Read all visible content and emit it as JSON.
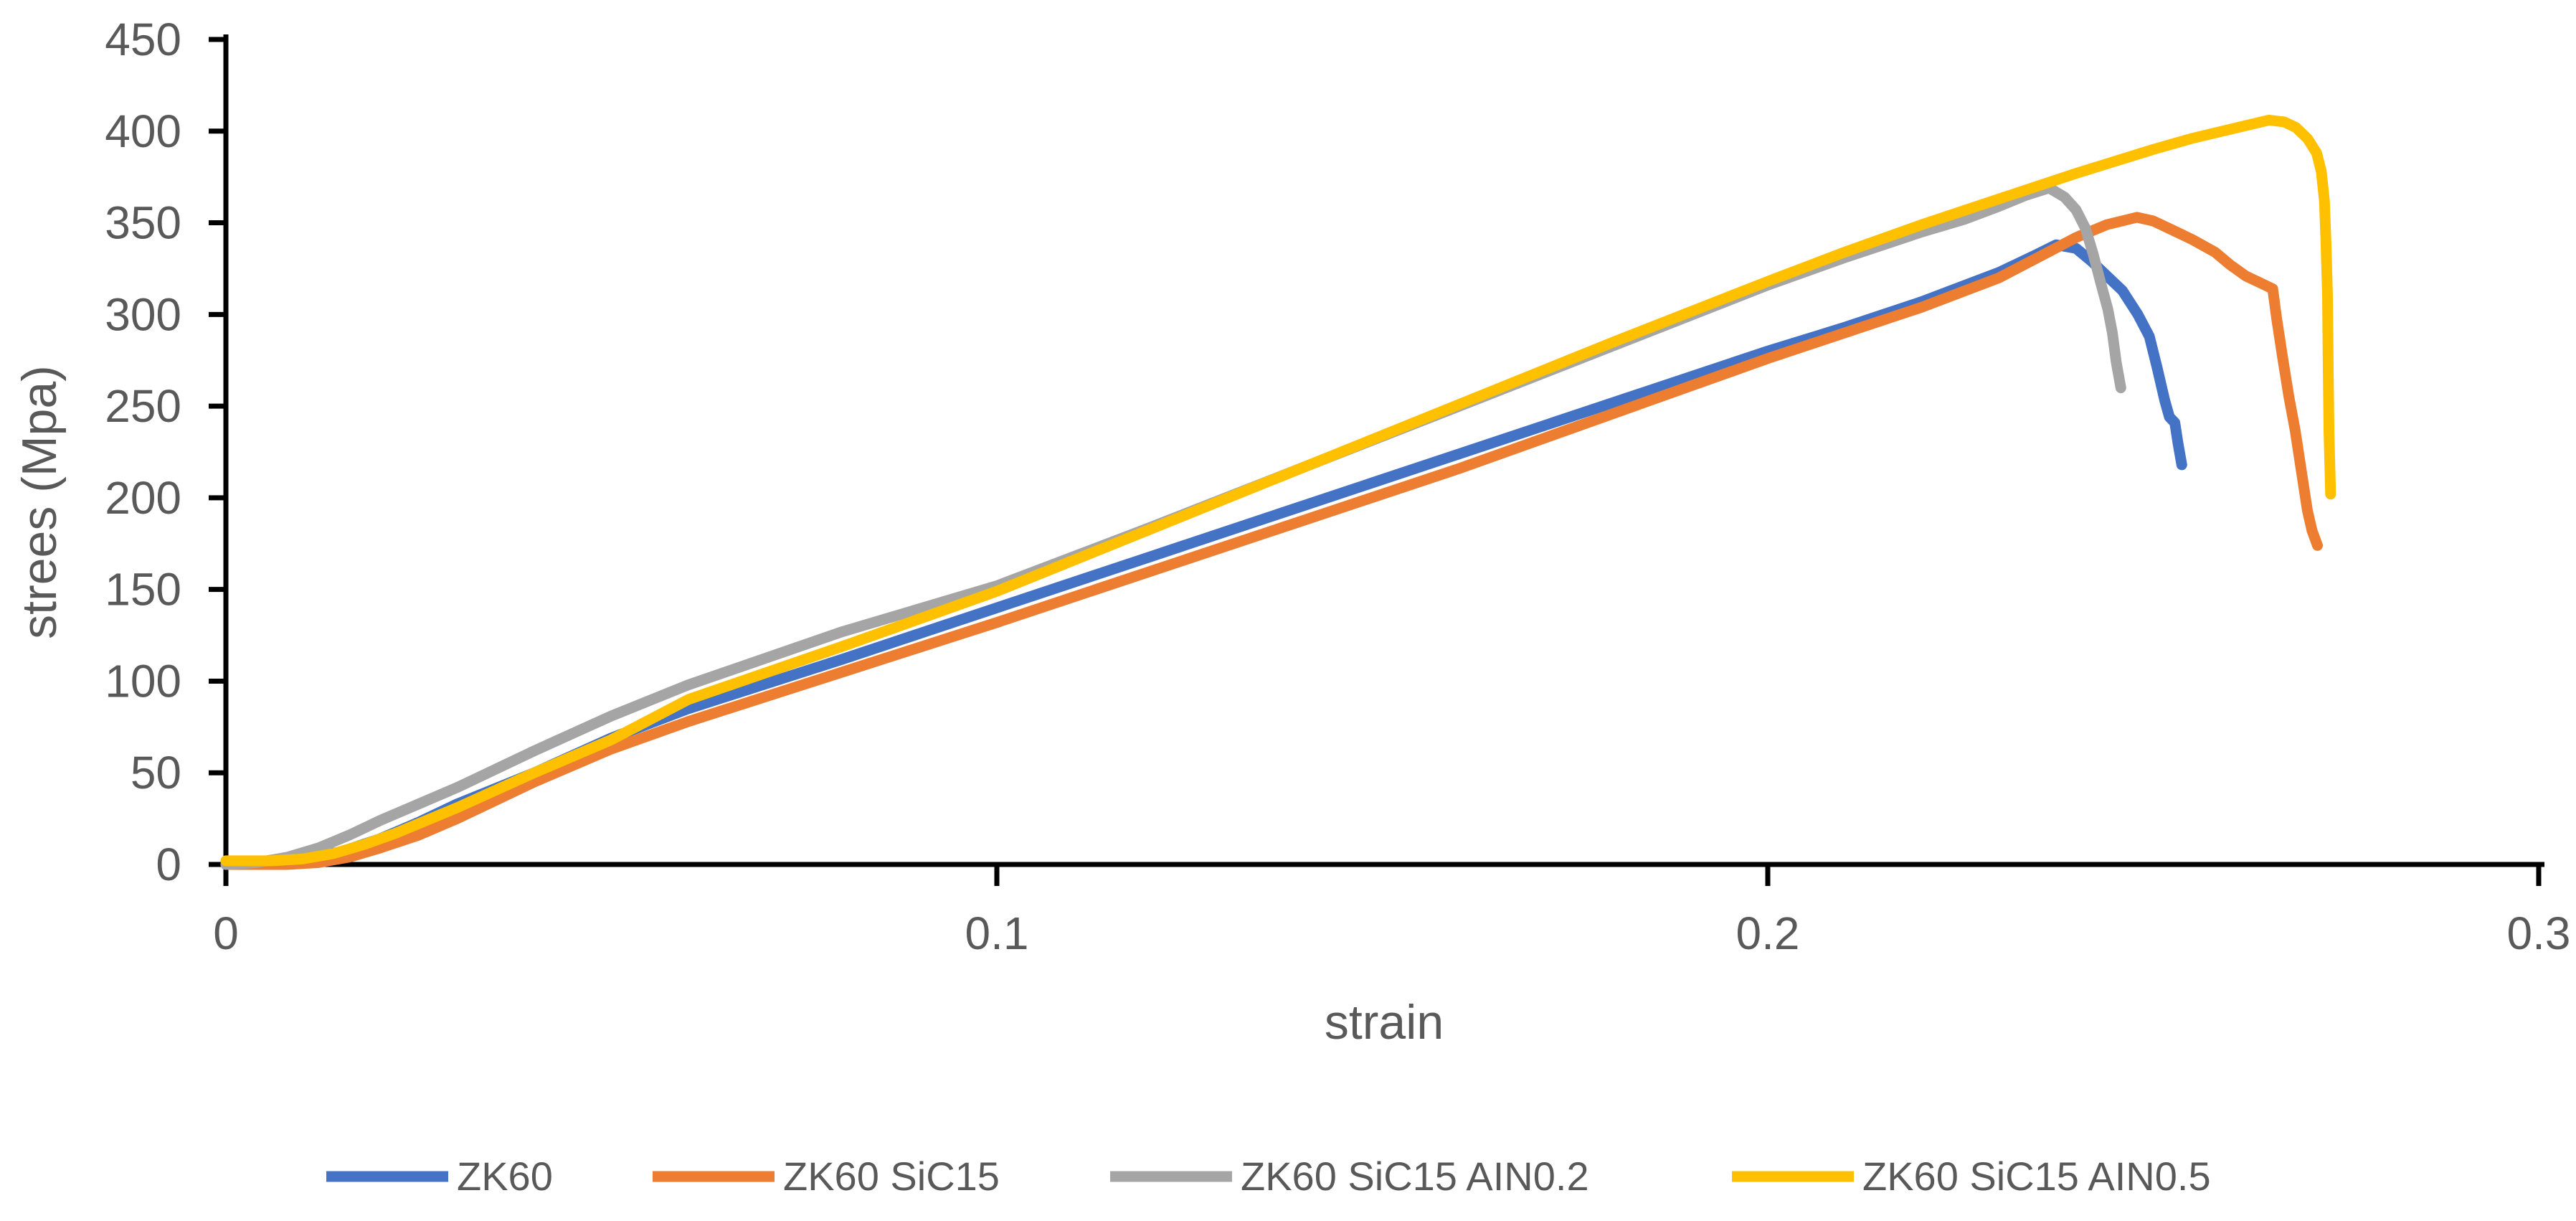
{
  "chart_data": {
    "type": "line",
    "title": "",
    "xlabel": "strain",
    "ylabel": "strees (Mpa)",
    "xlim": [
      0,
      0.3
    ],
    "ylim": [
      0,
      450
    ],
    "x_ticks": [
      0,
      0.1,
      0.2,
      0.3
    ],
    "y_ticks": [
      0,
      50,
      100,
      150,
      200,
      250,
      300,
      350,
      400,
      450
    ],
    "grid": false,
    "legend_position": "bottom",
    "axis_color": "#000000",
    "text_color": "#595959",
    "background_color": "#ffffff",
    "series": [
      {
        "name": "ZK60",
        "color": "#4472C4",
        "points": [
          [
            0,
            0
          ],
          [
            0.005,
            1
          ],
          [
            0.01,
            3
          ],
          [
            0.015,
            7
          ],
          [
            0.02,
            14
          ],
          [
            0.025,
            23
          ],
          [
            0.03,
            33
          ],
          [
            0.04,
            50
          ],
          [
            0.05,
            69
          ],
          [
            0.06,
            85
          ],
          [
            0.08,
            112
          ],
          [
            0.1,
            140
          ],
          [
            0.12,
            168
          ],
          [
            0.14,
            196
          ],
          [
            0.16,
            224
          ],
          [
            0.18,
            252
          ],
          [
            0.2,
            280
          ],
          [
            0.21,
            293
          ],
          [
            0.22,
            307
          ],
          [
            0.23,
            323
          ],
          [
            0.2345,
            332
          ],
          [
            0.2374,
            338
          ],
          [
            0.24,
            336
          ],
          [
            0.242,
            329
          ],
          [
            0.244,
            321
          ],
          [
            0.246,
            313
          ],
          [
            0.248,
            300
          ],
          [
            0.2495,
            288
          ],
          [
            0.2505,
            271
          ],
          [
            0.2515,
            253
          ],
          [
            0.2521,
            244
          ],
          [
            0.2528,
            241
          ],
          [
            0.2532,
            230
          ],
          [
            0.2537,
            218
          ]
        ]
      },
      {
        "name": "ZK60 SiC15",
        "color": "#ED7D31",
        "points": [
          [
            0,
            0
          ],
          [
            0.008,
            0
          ],
          [
            0.012,
            1
          ],
          [
            0.016,
            4
          ],
          [
            0.02,
            9
          ],
          [
            0.025,
            16
          ],
          [
            0.03,
            25
          ],
          [
            0.04,
            45
          ],
          [
            0.05,
            63
          ],
          [
            0.06,
            78
          ],
          [
            0.08,
            105
          ],
          [
            0.1,
            132
          ],
          [
            0.12,
            160
          ],
          [
            0.14,
            188
          ],
          [
            0.16,
            216
          ],
          [
            0.18,
            246
          ],
          [
            0.2,
            276
          ],
          [
            0.21,
            290
          ],
          [
            0.22,
            304
          ],
          [
            0.23,
            320
          ],
          [
            0.235,
            331
          ],
          [
            0.24,
            342
          ],
          [
            0.244,
            349
          ],
          [
            0.2479,
            353
          ],
          [
            0.25,
            351
          ],
          [
            0.252,
            347
          ],
          [
            0.255,
            341
          ],
          [
            0.258,
            334
          ],
          [
            0.26,
            327
          ],
          [
            0.262,
            321
          ],
          [
            0.264,
            317
          ],
          [
            0.2655,
            314
          ],
          [
            0.266,
            298
          ],
          [
            0.2668,
            276
          ],
          [
            0.2676,
            255
          ],
          [
            0.2684,
            237
          ],
          [
            0.2692,
            215
          ],
          [
            0.27,
            193
          ],
          [
            0.2706,
            182
          ],
          [
            0.2713,
            174
          ]
        ]
      },
      {
        "name": "ZK60 SiC15 AIN0.2",
        "color": "#A5A5A5",
        "points": [
          [
            0,
            0
          ],
          [
            0.004,
            1
          ],
          [
            0.008,
            4
          ],
          [
            0.012,
            9
          ],
          [
            0.016,
            16
          ],
          [
            0.02,
            24
          ],
          [
            0.025,
            33
          ],
          [
            0.03,
            42
          ],
          [
            0.04,
            62
          ],
          [
            0.05,
            81
          ],
          [
            0.06,
            98
          ],
          [
            0.08,
            127
          ],
          [
            0.1,
            152
          ],
          [
            0.12,
            184
          ],
          [
            0.14,
            217
          ],
          [
            0.16,
            250
          ],
          [
            0.18,
            283
          ],
          [
            0.2,
            316
          ],
          [
            0.21,
            331
          ],
          [
            0.22,
            345
          ],
          [
            0.2256,
            352
          ],
          [
            0.23,
            359
          ],
          [
            0.2335,
            365
          ],
          [
            0.2365,
            369
          ],
          [
            0.2385,
            364
          ],
          [
            0.24,
            357
          ],
          [
            0.2412,
            347
          ],
          [
            0.2422,
            333
          ],
          [
            0.2432,
            317
          ],
          [
            0.2441,
            303
          ],
          [
            0.2447,
            290
          ],
          [
            0.2452,
            274
          ],
          [
            0.2458,
            260
          ]
        ]
      },
      {
        "name": "ZK60 SiC15 AIN0.5",
        "color": "#FFC000",
        "points": [
          [
            0,
            2
          ],
          [
            0.006,
            2
          ],
          [
            0.01,
            3
          ],
          [
            0.014,
            6
          ],
          [
            0.018,
            11
          ],
          [
            0.022,
            17
          ],
          [
            0.026,
            24
          ],
          [
            0.03,
            31
          ],
          [
            0.04,
            50
          ],
          [
            0.05,
            68
          ],
          [
            0.06,
            90
          ],
          [
            0.08,
            119
          ],
          [
            0.1,
            149
          ],
          [
            0.12,
            183
          ],
          [
            0.14,
            217
          ],
          [
            0.16,
            251
          ],
          [
            0.18,
            285
          ],
          [
            0.2,
            318
          ],
          [
            0.21,
            334
          ],
          [
            0.22,
            349
          ],
          [
            0.23,
            363
          ],
          [
            0.24,
            377
          ],
          [
            0.25,
            390
          ],
          [
            0.255,
            396
          ],
          [
            0.26,
            401
          ],
          [
            0.265,
            406
          ],
          [
            0.267,
            405
          ],
          [
            0.2685,
            402
          ],
          [
            0.27,
            396
          ],
          [
            0.2712,
            388
          ],
          [
            0.2718,
            378
          ],
          [
            0.2722,
            362
          ],
          [
            0.2724,
            340
          ],
          [
            0.2726,
            310
          ],
          [
            0.2727,
            270
          ],
          [
            0.2728,
            235
          ],
          [
            0.273,
            202
          ]
        ]
      }
    ]
  }
}
